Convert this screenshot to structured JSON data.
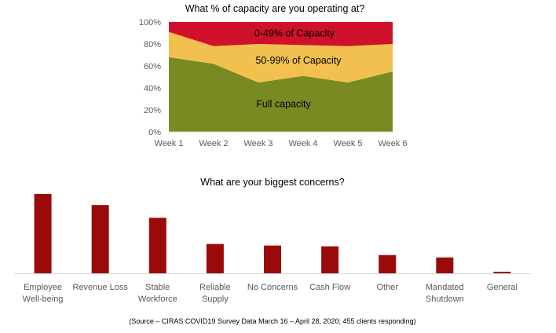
{
  "colors": {
    "full": "#7a8a22",
    "partial": "#f2c04f",
    "low": "#d0112b",
    "bar": "#9b0a0a",
    "axis": "#d9d9d9",
    "tick_text": "#595959"
  },
  "chart_data": [
    {
      "type": "area",
      "stacked": true,
      "percent": true,
      "title": "What % of capacity are you operating at?",
      "categories": [
        "Week 1",
        "Week 2",
        "Week 3",
        "Week 4",
        "Week 5",
        "Week 6"
      ],
      "y_ticks": [
        "0%",
        "20%",
        "40%",
        "60%",
        "80%",
        "100%"
      ],
      "ylim": [
        0,
        100
      ],
      "series": [
        {
          "name": "Full capacity",
          "values": [
            68,
            62,
            45,
            51,
            45,
            55
          ]
        },
        {
          "name": "50-99% of Capacity",
          "values": [
            23,
            16,
            35,
            28,
            33,
            25
          ]
        },
        {
          "name": "0-49% of Capacity",
          "values": [
            9,
            22,
            20,
            21,
            22,
            20
          ]
        }
      ],
      "grid": false,
      "legend": "labels inside areas"
    },
    {
      "type": "bar",
      "title": "What are your biggest concerns?",
      "categories": [
        [
          "Employee",
          "Well-being"
        ],
        [
          "Revenue Loss"
        ],
        [
          "Stable",
          "Workforce"
        ],
        [
          "Reliable",
          "Supply"
        ],
        [
          "No Concerns"
        ],
        [
          "Cash Flow"
        ],
        [
          "Other"
        ],
        [
          "Mandated",
          "Shutdown"
        ],
        [
          "General"
        ]
      ],
      "values": [
        100,
        86,
        70,
        37,
        35,
        34,
        23,
        20,
        2
      ],
      "grid": false
    }
  ],
  "source_note": "(Source – CIRAS COVID19 Survey Data March 16 – April 28, 2020; 455 clients responding)"
}
